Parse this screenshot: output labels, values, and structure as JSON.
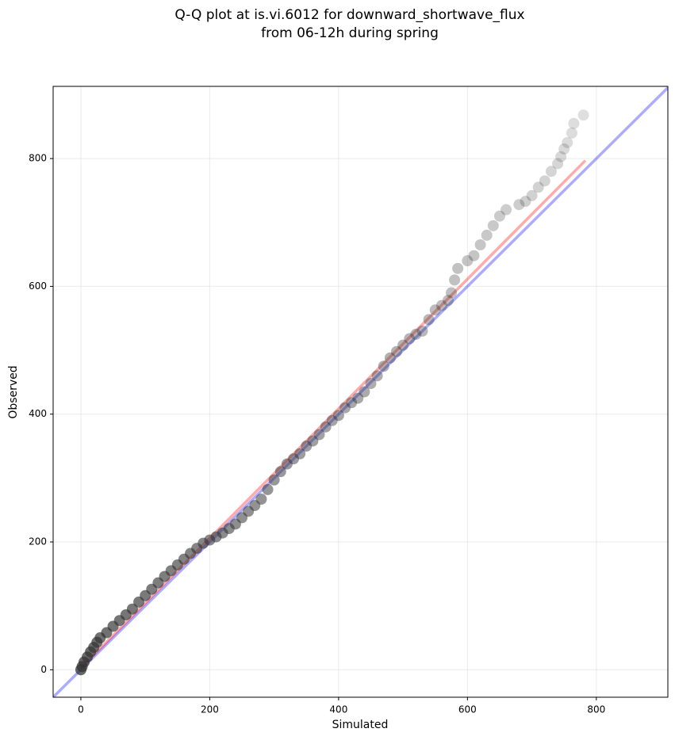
{
  "chart_data": {
    "type": "scatter",
    "title_lines": [
      "Q-Q plot at is.vi.6012 for downward_shortwave_flux",
      "from 06-12h during spring"
    ],
    "x_label": "Simulated",
    "y_label": "Observed",
    "xlim": [
      -43,
      911
    ],
    "ylim": [
      -43,
      913
    ],
    "xticks": [
      0,
      200,
      400,
      600,
      800
    ],
    "yticks": [
      0,
      200,
      400,
      600,
      800
    ],
    "grid": true,
    "color": "#333333",
    "x": [
      0,
      2,
      5,
      10,
      15,
      20,
      25,
      30,
      40,
      50,
      60,
      70,
      80,
      90,
      100,
      110,
      120,
      130,
      140,
      150,
      160,
      170,
      180,
      190,
      200,
      210,
      220,
      230,
      240,
      250,
      260,
      270,
      280,
      290,
      300,
      310,
      320,
      330,
      340,
      350,
      360,
      370,
      380,
      390,
      400,
      410,
      420,
      430,
      440,
      450,
      460,
      470,
      480,
      490,
      500,
      510,
      520,
      530,
      540,
      550,
      560,
      570,
      575,
      580,
      585,
      600,
      610,
      620,
      630,
      640,
      650,
      660,
      680,
      690,
      700,
      710,
      720,
      730,
      740,
      745,
      750,
      755,
      762,
      765,
      780
    ],
    "y": [
      0,
      5,
      12,
      20,
      28,
      35,
      43,
      50,
      58,
      68,
      77,
      86,
      95,
      106,
      116,
      126,
      136,
      146,
      155,
      164,
      173,
      182,
      190,
      198,
      203,
      208,
      214,
      221,
      228,
      238,
      248,
      257,
      267,
      282,
      297,
      310,
      322,
      330,
      338,
      350,
      358,
      368,
      380,
      390,
      398,
      410,
      418,
      425,
      435,
      448,
      460,
      475,
      488,
      498,
      508,
      518,
      525,
      530,
      548,
      563,
      570,
      578,
      590,
      610,
      628,
      640,
      648,
      665,
      680,
      695,
      710,
      720,
      728,
      733,
      742,
      755,
      765,
      780,
      792,
      803,
      815,
      825,
      840,
      855,
      868
    ],
    "reference_lines": [
      {
        "color": "#0000ff",
        "x": [
          -43,
          911
        ],
        "y": [
          -43,
          911
        ]
      },
      {
        "color": "#ff0000",
        "x": [
          0,
          783
        ],
        "y": [
          3,
          797
        ]
      }
    ]
  }
}
